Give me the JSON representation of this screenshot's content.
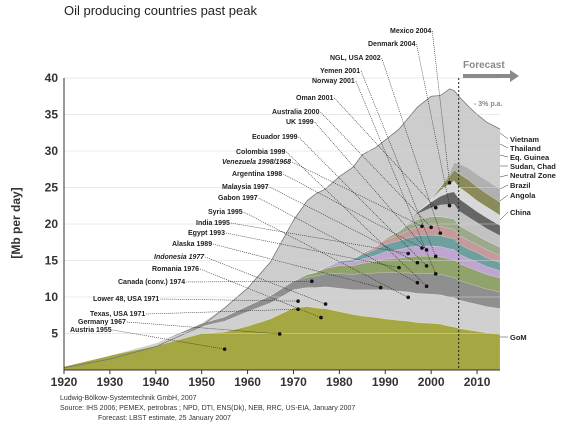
{
  "chart_data": {
    "type": "area",
    "title": "Oil producing countries past peak",
    "ylabel": "[Mb per day]",
    "xlim": [
      1920,
      2015
    ],
    "ylim": [
      0,
      40
    ],
    "x_ticks": [
      1920,
      1930,
      1940,
      1950,
      1960,
      1970,
      1980,
      1990,
      2000,
      2010
    ],
    "y_ticks": [
      5,
      10,
      15,
      20,
      25,
      30,
      35,
      40
    ],
    "forecast_label": "Forecast",
    "forecast_start": 2006,
    "decline_label": "- 3% p.a.",
    "x": [
      1920,
      1930,
      1940,
      1950,
      1955,
      1960,
      1965,
      1970,
      1973,
      1975,
      1977,
      1980,
      1983,
      1985,
      1988,
      1990,
      1993,
      1995,
      1997,
      2000,
      2002,
      2004,
      2005,
      2006,
      2008,
      2010,
      2012,
      2015
    ],
    "totals": [
      0.3,
      1.5,
      3.2,
      6,
      8.5,
      11.2,
      14.8,
      20.5,
      23.2,
      24.2,
      24.8,
      26.5,
      27.8,
      29.5,
      30.5,
      31.5,
      33,
      34.5,
      36,
      37.5,
      37.6,
      38.5,
      38.3,
      37.5,
      36.2,
      35,
      34,
      33
    ],
    "series": [
      {
        "color": "#a5a842",
        "values": [
          0.5,
          2,
          3.3,
          5,
          5.2,
          6,
          7,
          8.5,
          8.7,
          8.5,
          8.4,
          8,
          7.6,
          7.4,
          7.2,
          7,
          6.8,
          6.7,
          6.5,
          6.4,
          6.3,
          6,
          5.9,
          5.7,
          5.5,
          5.3,
          5.1,
          4.9
        ]
      },
      {
        "color": "#d0d0d0",
        "values": [
          0,
          0,
          0.4,
          1,
          1.5,
          2,
          2.2,
          2.5,
          2.6,
          2.8,
          3,
          3.2,
          3.4,
          3.6,
          3.8,
          4,
          4,
          4,
          4,
          4,
          4,
          4,
          4,
          3.9,
          3.8,
          3.7,
          3.6,
          3.5
        ]
      },
      {
        "color": "#8f8f8f",
        "values": [
          0,
          0,
          0,
          0.4,
          0.6,
          0.8,
          1,
          1.2,
          1.4,
          1.6,
          1.8,
          2,
          2.1,
          2.2,
          2.3,
          2.4,
          2.5,
          2.6,
          2.7,
          2.8,
          2.8,
          2.8,
          2.8,
          2.7,
          2.6,
          2.5,
          2.4,
          2.3
        ]
      },
      {
        "color": "#8fa36a",
        "values": [
          0,
          0,
          0,
          0,
          0,
          0,
          0,
          0,
          0.4,
          0.5,
          0.7,
          1.1,
          1.2,
          1.4,
          1.6,
          1.8,
          2,
          2.2,
          2.4,
          2.4,
          2.4,
          2.4,
          2.4,
          2.3,
          2.2,
          2.1,
          2,
          1.9
        ]
      },
      {
        "color": "#bfa5cf",
        "values": [
          0,
          0,
          0,
          0,
          0,
          0,
          0,
          0,
          0,
          0,
          0.2,
          0.4,
          0.5,
          0.6,
          0.8,
          1,
          1.2,
          1.3,
          1.4,
          1.4,
          1.4,
          1.4,
          1.4,
          1.3,
          1.2,
          1.2,
          1.1,
          1
        ]
      },
      {
        "color": "#6fa0a0",
        "values": [
          0,
          0,
          0,
          0,
          0,
          0,
          0,
          0,
          0,
          0,
          0,
          0.2,
          0.4,
          0.6,
          0.8,
          1,
          1.2,
          1.3,
          1.4,
          1.5,
          1.5,
          1.5,
          1.5,
          1.4,
          1.3,
          1.3,
          1.2,
          1.1
        ]
      },
      {
        "color": "#c49a9a",
        "values": [
          0,
          0,
          0,
          0,
          0,
          0,
          0,
          0,
          0,
          0,
          0,
          0,
          0,
          0.2,
          0.4,
          0.6,
          0.8,
          1,
          1.2,
          1.3,
          1.3,
          1.3,
          1.3,
          1.2,
          1.2,
          1.1,
          1.1,
          1
        ]
      },
      {
        "color": "#9aaa8a",
        "values": [
          0,
          0,
          0,
          0,
          0,
          0,
          0,
          0,
          0,
          0,
          0,
          0,
          0,
          0,
          0,
          0.2,
          0.5,
          0.8,
          1,
          1.2,
          1.3,
          1.4,
          1.4,
          1.3,
          1.3,
          1.2,
          1.2,
          1.1
        ]
      },
      {
        "color": "#c2c2c2",
        "values": [
          0,
          0,
          0,
          0,
          0,
          0,
          0,
          0,
          0,
          0,
          0,
          0,
          0,
          0,
          0,
          0,
          0,
          0.4,
          0.8,
          1.2,
          1.6,
          1.9,
          2,
          2,
          1.9,
          1.8,
          1.7,
          1.6
        ]
      },
      {
        "color": "#666666",
        "values": [
          0,
          0,
          0,
          0,
          0,
          0,
          0,
          0,
          0,
          0,
          0,
          0,
          0,
          0,
          0,
          0,
          0,
          0,
          0.2,
          0.8,
          1.2,
          1.6,
          1.7,
          1.7,
          1.6,
          1.5,
          1.5,
          1.4
        ]
      },
      {
        "color": "#d8d8d8",
        "values": [
          0,
          0,
          0,
          0,
          0,
          0,
          0,
          0,
          0,
          0,
          0,
          0,
          0,
          0,
          0,
          0,
          0,
          0,
          0,
          0.3,
          0.8,
          1.2,
          1.5,
          1.6,
          1.6,
          1.5,
          1.5,
          1.4
        ]
      },
      {
        "color": "#8a8a5a",
        "values": [
          0,
          0,
          0,
          0,
          0,
          0,
          0,
          0,
          0,
          0,
          0,
          0,
          0,
          0,
          0,
          0,
          0,
          0,
          0,
          0,
          0.4,
          1,
          1.5,
          1.8,
          1.9,
          1.9,
          1.8,
          1.8
        ]
      },
      {
        "color": "#b0b0b0",
        "values": [
          0,
          0,
          0,
          0,
          0,
          0,
          0,
          0,
          0,
          0,
          0,
          0,
          0,
          0,
          0,
          0,
          0,
          0,
          0,
          0,
          0,
          0.5,
          1,
          1.4,
          1.6,
          1.7,
          1.8,
          1.8
        ]
      }
    ],
    "annotations": [
      {
        "label": "Austria 1955",
        "year": 1955,
        "italic": false
      },
      {
        "label": "Germany 1967",
        "year": 1967,
        "italic": false
      },
      {
        "label": "Texas, USA 1971",
        "year": 1971,
        "italic": false
      },
      {
        "label": "Lower 48, USA  1971",
        "year": 1971,
        "italic": false
      },
      {
        "label": "Canada (conv.) 1974",
        "year": 1974,
        "italic": false
      },
      {
        "label": "Romania 1976",
        "year": 1976,
        "italic": false
      },
      {
        "label": "Indonesia 1977",
        "year": 1977,
        "italic": true
      },
      {
        "label": "Alaska 1989",
        "year": 1989,
        "italic": false
      },
      {
        "label": "Egypt 1993",
        "year": 1993,
        "italic": false
      },
      {
        "label": "India 1995",
        "year": 1995,
        "italic": false
      },
      {
        "label": "Syria 1995",
        "year": 1995,
        "italic": false
      },
      {
        "label": "Gabon 1997",
        "year": 1997,
        "italic": false
      },
      {
        "label": "Malaysia 1997",
        "year": 1997,
        "italic": false
      },
      {
        "label": "Argentina 1998",
        "year": 1998,
        "italic": false
      },
      {
        "label": "Venezuela 1998/1968",
        "year": 1998,
        "italic": true
      },
      {
        "label": "Colombia 1999",
        "year": 1999,
        "italic": false
      },
      {
        "label": "Ecuador 1999",
        "year": 1999,
        "italic": false
      },
      {
        "label": "UK 1999",
        "year": 1999,
        "italic": false
      },
      {
        "label": "Australia 2000",
        "year": 2000,
        "italic": false
      },
      {
        "label": "Oman 2001",
        "year": 2001,
        "italic": false
      },
      {
        "label": "Norway 2001",
        "year": 2001,
        "italic": false
      },
      {
        "label": "Yemen 2001",
        "year": 2001,
        "italic": false
      },
      {
        "label": "NGL, USA 2002",
        "year": 2002,
        "italic": false
      },
      {
        "label": "Denmark 2004",
        "year": 2004,
        "italic": false
      },
      {
        "label": "Mexico 2004",
        "year": 2004,
        "italic": false
      }
    ],
    "right_labels": [
      "Vietnam",
      "Thailand",
      "Eq. Guinea",
      "Sudan, Chad",
      "Neutral Zone",
      "Brazil",
      "Angola",
      "China",
      "GoM"
    ]
  },
  "source": {
    "line1": "Ludwig-Bölkow-Systemtechnik GmbH, 2007",
    "line2": "Source: IHS 2006; PEMEX, petrobras ;  NPD, DTI, ENS(Dk), NEB, RRC, US-EIA, January 2007",
    "line3": "Forecast: LBST estimate, 25 January 2007"
  }
}
